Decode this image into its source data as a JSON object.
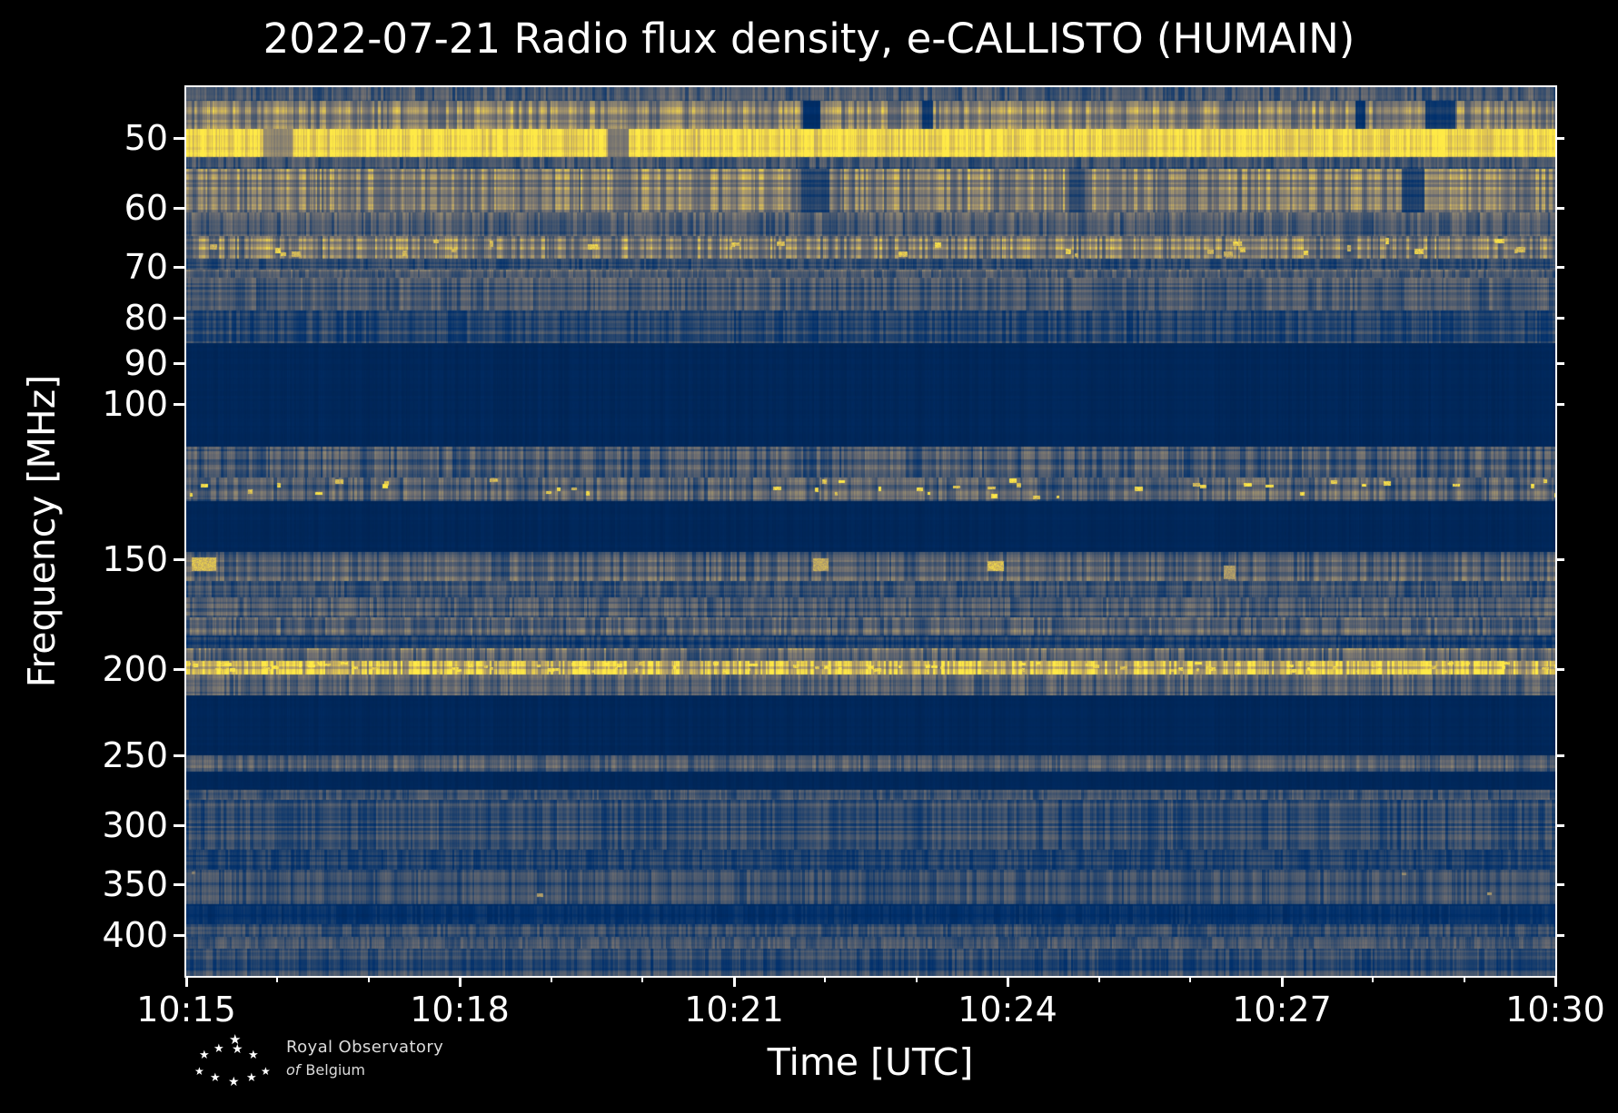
{
  "header": {
    "title": "2022-07-21 Radio flux density, e-CALLISTO (HUMAIN)"
  },
  "chart_data": {
    "type": "heatmap",
    "title": "2022-07-21 Radio flux density, e-CALLISTO (HUMAIN)",
    "date": "2022-07-21",
    "station": "HUMAIN",
    "xlabel": "Time [UTC]",
    "ylabel": "Frequency [MHz]",
    "x_ticks": {
      "labels": [
        "10:15",
        "10:18",
        "10:21",
        "10:24",
        "10:27",
        "10:30"
      ],
      "minutes": [
        0,
        3,
        6,
        9,
        12,
        15
      ],
      "total_minutes": 15,
      "minor_every_minutes": 1
    },
    "y_ticks": [
      50,
      60,
      70,
      80,
      90,
      100,
      150,
      200,
      250,
      300,
      350,
      400
    ],
    "y_scale": "log",
    "y_inverted_low_freq_at_top": true,
    "freq_range_mhz": [
      43.8,
      445
    ],
    "grid": false,
    "legend": "none",
    "colormap": "cividis",
    "colormap_stops": [
      {
        "t": 0.0,
        "rgb": [
          0,
          32,
          76
        ]
      },
      {
        "t": 0.1,
        "rgb": [
          0,
          48,
          108
        ]
      },
      {
        "t": 0.25,
        "rgb": [
          66,
          84,
          109
        ]
      },
      {
        "t": 0.4,
        "rgb": [
          106,
          107,
          112
        ]
      },
      {
        "t": 0.55,
        "rgb": [
          142,
          133,
          112
        ]
      },
      {
        "t": 0.7,
        "rgb": [
          180,
          160,
          105
        ]
      },
      {
        "t": 0.85,
        "rgb": [
          220,
          192,
          83
        ]
      },
      {
        "t": 1.0,
        "rgb": [
          255,
          234,
          70
        ]
      }
    ],
    "background_level": 0.045,
    "bands": [
      {
        "name": "top-edge-noise",
        "f_mhz": [
          43.8,
          45.4
        ],
        "base": 0.26,
        "col_var": 0.45,
        "row_var": 0.2
      },
      {
        "name": "gray-band-46MHz",
        "f_mhz": [
          45.4,
          48.8
        ],
        "base": 0.55,
        "col_var": 0.4,
        "row_var": 0.25,
        "dropout_prob": 0.012,
        "dropout_factor": 0.25
      },
      {
        "name": "strong-yellow-band-50MHz",
        "f_mhz": [
          48.8,
          52.6
        ],
        "base": 0.94,
        "col_var": 0.12,
        "row_var": 0.08,
        "dropout_prob": 0.008,
        "dropout_factor": 0.55
      },
      {
        "name": "dim-gap-53MHz",
        "f_mhz": [
          52.6,
          54.2
        ],
        "base": 0.26,
        "col_var": 0.4,
        "row_var": 0.3
      },
      {
        "name": "gray-band-55-60MHz",
        "f_mhz": [
          54.2,
          60.8
        ],
        "base": 0.48,
        "col_var": 0.4,
        "row_var": 0.32,
        "dropout_prob": 0.008,
        "dropout_factor": 0.4
      },
      {
        "name": "weak-band-62MHz",
        "f_mhz": [
          60.8,
          64.6
        ],
        "base": 0.3,
        "col_var": 0.4,
        "row_var": 0.3
      },
      {
        "name": "patchy-band-66MHz",
        "f_mhz": [
          64.6,
          68.6
        ],
        "base": 0.5,
        "col_var": 0.45,
        "row_var": 0.3,
        "speckle": {
          "p": 0.04,
          "t": 0.88,
          "w": [
            4,
            12
          ],
          "h": [
            4,
            8
          ]
        }
      },
      {
        "name": "faint-band-69MHz",
        "f_mhz": [
          68.6,
          70.5
        ],
        "base": 0.2,
        "col_var": 0.35,
        "row_var": 0.3
      },
      {
        "name": "thin-row-71MHz",
        "f_mhz": [
          70.5,
          72.0
        ],
        "base": 0.34,
        "col_var": 0.35,
        "row_var": 0.25
      },
      {
        "name": "blue-noise-72-78MHz",
        "f_mhz": [
          72.0,
          78.4
        ],
        "base": 0.26,
        "col_var": 0.35,
        "row_var": 0.35
      },
      {
        "name": "blue-noise-78-85MHz",
        "f_mhz": [
          78.4,
          85.4
        ],
        "base": 0.21,
        "col_var": 0.35,
        "row_var": 0.35
      },
      {
        "name": "speckled-band-112-121MHz",
        "f_mhz": [
          112.0,
          121.4
        ],
        "base": 0.28,
        "col_var": 0.45,
        "row_var": 0.3
      },
      {
        "name": "yellow-dash-row-125MHz",
        "f_mhz": [
          121.4,
          129.0
        ],
        "base": 0.32,
        "col_var": 0.45,
        "row_var": 0.3,
        "speckle": {
          "p": 0.06,
          "t": 0.95,
          "w": [
            3,
            10
          ],
          "h": [
            3,
            6
          ]
        }
      },
      {
        "name": "band-150MHz-with-bursts",
        "f_mhz": [
          147.3,
          159.0
        ],
        "base": 0.33,
        "col_var": 0.4,
        "row_var": 0.3,
        "speckle": {
          "p": 0.006,
          "t": 0.78,
          "w": [
            12,
            34
          ],
          "h": [
            8,
            16
          ]
        }
      },
      {
        "name": "band-160MHz",
        "f_mhz": [
          159.0,
          165.8
        ],
        "base": 0.24,
        "col_var": 0.35,
        "row_var": 0.3
      },
      {
        "name": "band-170MHz",
        "f_mhz": [
          165.8,
          174.7
        ],
        "base": 0.29,
        "col_var": 0.35,
        "row_var": 0.35
      },
      {
        "name": "gray-band-178MHz",
        "f_mhz": [
          174.7,
          183.2
        ],
        "base": 0.35,
        "col_var": 0.4,
        "row_var": 0.3
      },
      {
        "name": "dim-band-186MHz",
        "f_mhz": [
          183.2,
          189.2
        ],
        "base": 0.17,
        "col_var": 0.3,
        "row_var": 0.3
      },
      {
        "name": "band-192MHz",
        "f_mhz": [
          189.2,
          195.7
        ],
        "base": 0.4,
        "col_var": 0.45,
        "row_var": 0.3
      },
      {
        "name": "yellow-streak-198MHz",
        "f_mhz": [
          195.7,
          202.5
        ],
        "base": 0.72,
        "col_var": 0.35,
        "row_var": 0.25,
        "speckle": {
          "p": 0.12,
          "t": 0.95,
          "w": [
            3,
            9
          ],
          "h": [
            3,
            5
          ]
        }
      },
      {
        "name": "band-205-214MHz",
        "f_mhz": [
          202.5,
          214.0
        ],
        "base": 0.3,
        "col_var": 0.4,
        "row_var": 0.3
      },
      {
        "name": "row-250MHz",
        "f_mhz": [
          250.0,
          261.0
        ],
        "base": 0.29,
        "col_var": 0.35,
        "row_var": 0.3
      },
      {
        "name": "row-275MHz",
        "f_mhz": [
          274.0,
          281.0
        ],
        "base": 0.29,
        "col_var": 0.35,
        "row_var": 0.3
      },
      {
        "name": "blue-noise-280-320MHz",
        "f_mhz": [
          281.0,
          320.0
        ],
        "base": 0.22,
        "col_var": 0.35,
        "row_var": 0.35
      },
      {
        "name": "blue-noise-320-337MHz",
        "f_mhz": [
          320.0,
          337.0
        ],
        "base": 0.17,
        "col_var": 0.3,
        "row_var": 0.3
      },
      {
        "name": "blue-noise-337-369MHz",
        "f_mhz": [
          337.0,
          369.0
        ],
        "base": 0.22,
        "col_var": 0.35,
        "row_var": 0.3,
        "speckle": {
          "p": 0.004,
          "t": 0.6,
          "w": [
            4,
            10
          ],
          "h": [
            3,
            5
          ]
        }
      },
      {
        "name": "dark-row-370-389MHz",
        "f_mhz": [
          369.0,
          389.0
        ],
        "base": 0.1,
        "col_var": 0.3,
        "row_var": 0.25
      },
      {
        "name": "blue-noise-389-402MHz",
        "f_mhz": [
          389.0,
          402.0
        ],
        "base": 0.22,
        "col_var": 0.35,
        "row_var": 0.3
      },
      {
        "name": "gray-row-408MHz",
        "f_mhz": [
          402.0,
          414.0
        ],
        "base": 0.29,
        "col_var": 0.35,
        "row_var": 0.3
      },
      {
        "name": "bottom-blue-noise",
        "f_mhz": [
          414.0,
          445.0
        ],
        "base": 0.22,
        "col_var": 0.35,
        "row_var": 0.35
      }
    ]
  },
  "footer": {
    "logo": {
      "line1": "Royal Observatory",
      "line2_prefix": "of",
      "line2_suffix": "Belgium",
      "star_glyph": "★"
    }
  }
}
